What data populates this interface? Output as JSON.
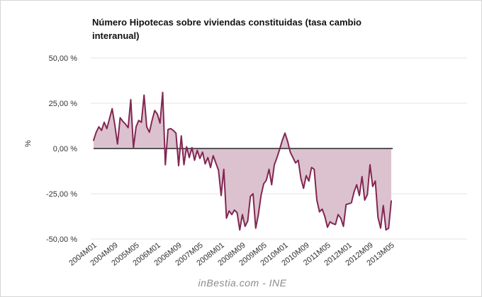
{
  "title": "Número Hipotecas sobre viviendas constituidas (tasa cambio interanual)",
  "watermark": "inBestia.com - INE",
  "chart_data": {
    "type": "area",
    "title": "Número Hipotecas sobre viviendas constituidas (tasa cambio interanual)",
    "xlabel": "",
    "ylabel": "%",
    "ylim": [
      -50,
      50
    ],
    "grid": true,
    "legend": false,
    "x_start": "2004M01",
    "x_end": "2013M05",
    "x_frequency": "monthly",
    "x_tick_interval_months": 8,
    "x_tick_labels": [
      "2004M01",
      "2004M09",
      "2005M05",
      "2006M01",
      "2006M09",
      "2007M05",
      "2008M01",
      "2008M09",
      "2009M05",
      "2010M01",
      "2010M09",
      "2011M05",
      "2012M01",
      "2012M09",
      "2013M05"
    ],
    "y_tick_labels": [
      "50,00 %",
      "25,00 %",
      "0,00 %",
      "-25,00 %",
      "-50,00 %"
    ],
    "y_tick_values": [
      50,
      25,
      0,
      -25,
      -50
    ],
    "series": [
      {
        "name": "Número Hipotecas sobre viviendas constituidas (tasa cambio interanual)",
        "unit": "%",
        "values": [
          4.5,
          9,
          12,
          10,
          14.5,
          11,
          16.5,
          22,
          13,
          2.5,
          17,
          15,
          13.5,
          11.5,
          27,
          0.5,
          12,
          15.5,
          14.5,
          29.5,
          12,
          9,
          15.5,
          21,
          19,
          14,
          31,
          -9,
          10.5,
          11,
          10,
          8.5,
          -9.5,
          7,
          -9,
          1,
          -5,
          0.5,
          -6.5,
          -1,
          -5.5,
          -2,
          -8.5,
          -5,
          -10.5,
          -4,
          -8,
          -12,
          -26,
          -11.5,
          -38.5,
          -34.5,
          -36.5,
          -34,
          -35.5,
          -45,
          -36.5,
          -43,
          -40,
          -26.5,
          -25,
          -44,
          -36.5,
          -26,
          -19.5,
          -17.5,
          -11.5,
          -20,
          -9,
          -5,
          -0.5,
          4.5,
          8.5,
          4,
          -2,
          -5,
          -8,
          -6.5,
          -16.5,
          -22,
          -15,
          -18,
          -10.5,
          -11.5,
          -28.5,
          -35,
          -33.5,
          -37.5,
          -43.5,
          -40.5,
          -41.5,
          -42,
          -36.5,
          -38.5,
          -43,
          -31,
          -30.5,
          -30,
          -24,
          -20,
          -26,
          -15.5,
          -28.5,
          -25.5,
          -9,
          -21,
          -18,
          -38,
          -44,
          -31.5,
          -45,
          -44,
          -29
        ]
      }
    ],
    "colors": {
      "line": "#822752",
      "fill": "#dcc2cf",
      "zero_line": "#555555",
      "grid": "#e5e5e5",
      "axis_text": "#333333"
    }
  }
}
